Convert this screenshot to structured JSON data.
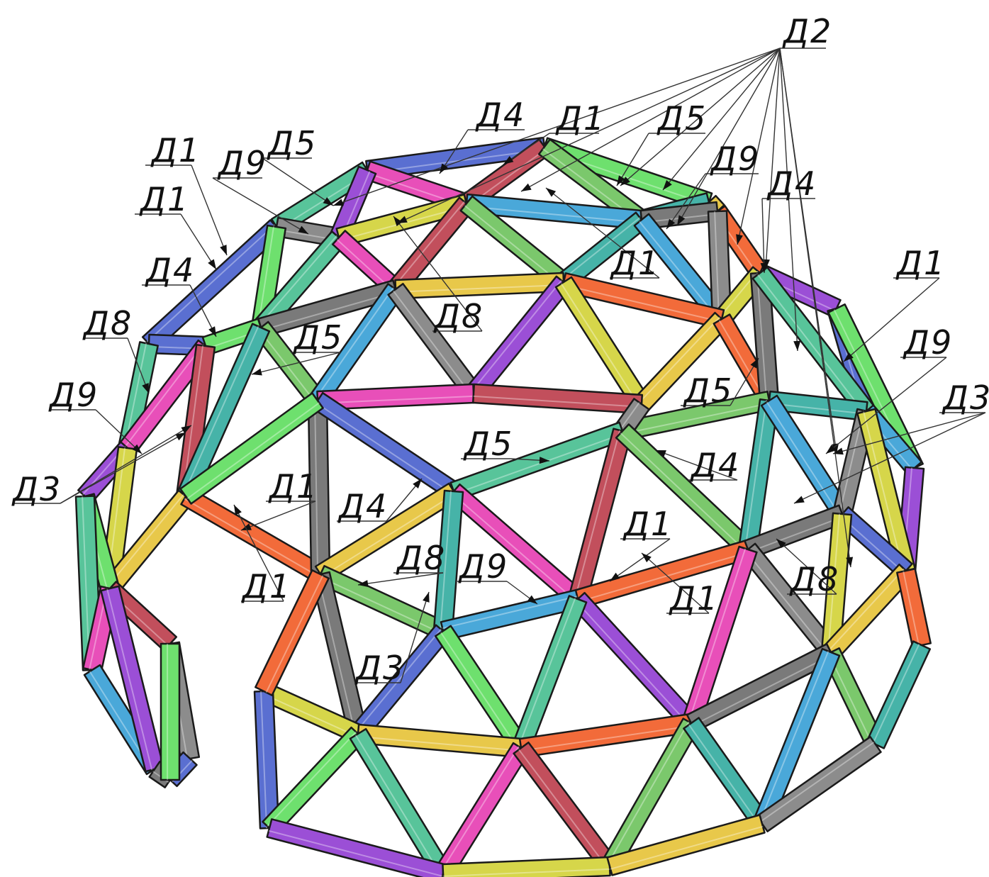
{
  "diagram": {
    "type": "geodesic-dome-strut-assembly",
    "part_labels": {
      "top": "Д2",
      "l_d4_top": "Д4",
      "l_d1_top": "Д1",
      "l_d5_top": "Д5",
      "l_d9_top": "Д9",
      "l_d4_right_top": "Д4",
      "l_d1_left_a": "Д1",
      "l_d1_left_b": "Д1",
      "l_d9_left": "Д9",
      "l_d5_left": "Д5",
      "l_d4_left": "Д4",
      "l_d8_left": "Д8",
      "l_d9_far_left": "Д9",
      "l_d3_left": "Д3",
      "l_d1_mid_top": "Д1",
      "l_d8_mid": "Д8",
      "l_d5_mid": "Д5",
      "l_d5_right": "Д5",
      "l_d1_right": "Д1",
      "l_d9_right": "Д9",
      "l_d3_right": "Д3",
      "l_d5_center": "Д5",
      "l_d4_right_mid": "Д4",
      "l_d1_center_left": "Д1",
      "l_d4_center": "Д4",
      "l_d1_center_right": "Д1",
      "l_d8_low": "Д8",
      "l_d9_low": "Д9",
      "l_d8_right_low": "Д8",
      "l_d1_low_left": "Д1",
      "l_d1_low_right": "Д1",
      "l_d3_low": "Д3"
    },
    "palette": [
      "#7bc86c",
      "#8c8c8c",
      "#e8c84a",
      "#5a6fd1",
      "#e84fb9",
      "#46b3a8",
      "#9b4fd6",
      "#f26b3a",
      "#6ee06e",
      "#c24f5c",
      "#4aa8d9",
      "#d6d64a",
      "#7a7a7a",
      "#58c49a"
    ]
  }
}
